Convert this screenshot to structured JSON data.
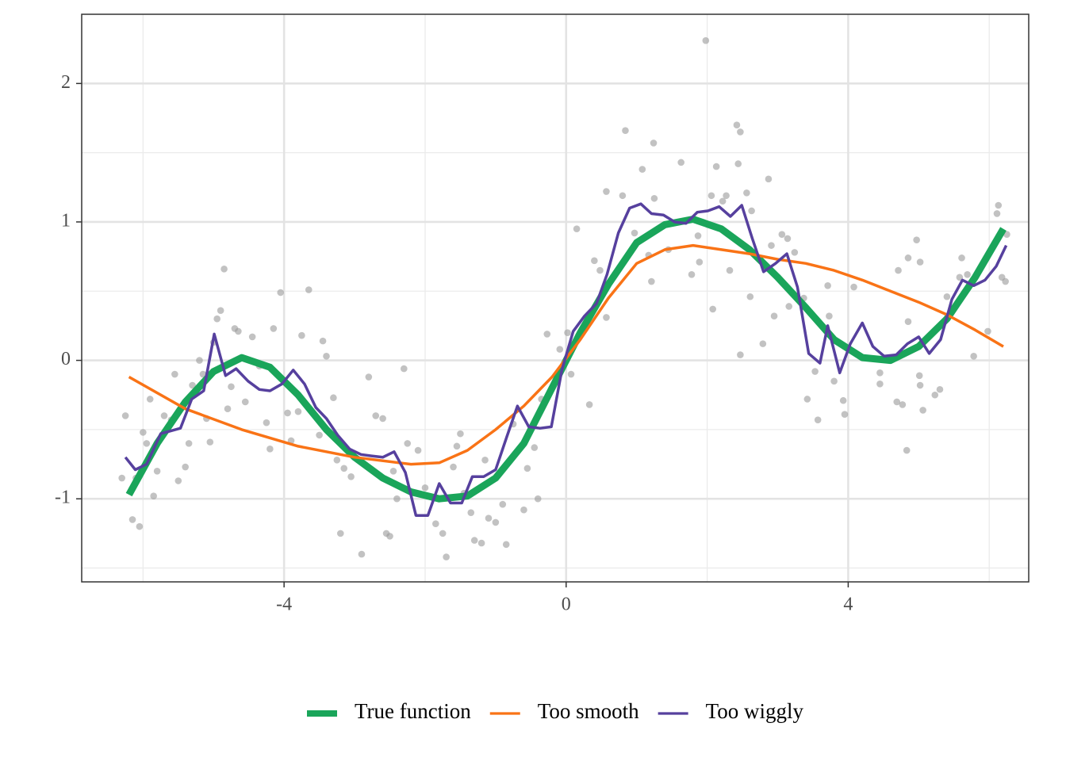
{
  "chart_data": {
    "type": "line",
    "xlim": [
      -6.87,
      6.56
    ],
    "ylim": [
      -1.6,
      2.5
    ],
    "xticks": [
      -4,
      0,
      4
    ],
    "yticks": [
      -1,
      0,
      1,
      2
    ],
    "minor_xgrid": [
      -6,
      -2,
      2,
      6
    ],
    "minor_ygrid": [
      -1.5,
      -0.5,
      0.5,
      1.5
    ],
    "grid": true,
    "legend_position": "bottom",
    "points": {
      "color": "#999999",
      "x": [
        -6.3,
        -6.25,
        -6.15,
        -6.1,
        -6.05,
        -6.0,
        -5.95,
        -5.9,
        -5.85,
        -5.8,
        -5.7,
        -5.6,
        -5.55,
        -5.5,
        -5.4,
        -5.35,
        -5.3,
        -5.2,
        -5.15,
        -5.1,
        -5.05,
        -5.0,
        -4.95,
        -4.9,
        -4.85,
        -4.8,
        -4.75,
        -4.7,
        -4.65,
        -4.55,
        -4.45,
        -4.35,
        -4.25,
        -4.2,
        -4.15,
        -4.05,
        -3.95,
        -3.9,
        -3.8,
        -3.75,
        -3.65,
        -3.5,
        -3.45,
        -3.4,
        -3.3,
        -3.25,
        -3.2,
        -3.15,
        -3.05,
        -2.9,
        -2.8,
        -2.7,
        -2.6,
        -2.55,
        -2.5,
        -2.45,
        -2.4,
        -2.3,
        -2.25,
        -2.1,
        -2.0,
        -1.85,
        -1.75,
        -1.7,
        -1.6,
        -1.55,
        -1.5,
        -1.45,
        -1.35,
        -1.3,
        -1.2,
        -1.15,
        -1.1,
        -1.0,
        -0.9,
        -0.85,
        -0.75,
        -0.6,
        -0.55,
        -0.45,
        -0.4,
        -0.35,
        -0.27,
        -0.09,
        0.02,
        0.07,
        0.15,
        0.33,
        0.4,
        0.48,
        0.57,
        0.57,
        0.8,
        0.84,
        0.97,
        1.08,
        1.17,
        1.21,
        1.24,
        1.25,
        1.45,
        1.63,
        1.78,
        1.87,
        1.89,
        1.98,
        2.06,
        2.08,
        2.13,
        2.22,
        2.27,
        2.32,
        2.42,
        2.44,
        2.47,
        2.47,
        2.56,
        2.61,
        2.63,
        2.79,
        2.87,
        2.91,
        2.95,
        3.06,
        3.14,
        3.16,
        3.24,
        3.37,
        3.42,
        3.53,
        3.57,
        3.71,
        3.73,
        3.8,
        3.93,
        3.95,
        4.08,
        4.45,
        4.45,
        4.69,
        4.71,
        4.77,
        4.83,
        4.85,
        4.85,
        4.97,
        5.02,
        5.01,
        5.02,
        5.06,
        5.23,
        5.3,
        5.4,
        5.58,
        5.61,
        5.69,
        5.78,
        5.98,
        6.11,
        6.13,
        6.18,
        6.23,
        6.25
      ],
      "y": [
        -0.85,
        -0.4,
        -1.15,
        -0.85,
        -1.2,
        -0.52,
        -0.6,
        -0.28,
        -0.98,
        -0.8,
        -0.4,
        -0.43,
        -0.1,
        -0.87,
        -0.77,
        -0.6,
        -0.18,
        0.0,
        -0.1,
        -0.42,
        -0.59,
        0.13,
        0.3,
        0.36,
        0.66,
        -0.35,
        -0.19,
        0.23,
        0.21,
        -0.3,
        0.17,
        -0.04,
        -0.45,
        -0.64,
        0.23,
        0.49,
        -0.38,
        -0.58,
        -0.37,
        0.18,
        0.51,
        -0.54,
        0.14,
        0.03,
        -0.27,
        -0.72,
        -1.25,
        -0.78,
        -0.84,
        -1.4,
        -0.12,
        -0.4,
        -0.42,
        -1.25,
        -1.27,
        -0.8,
        -1.0,
        -0.06,
        -0.6,
        -0.65,
        -0.92,
        -1.18,
        -1.25,
        -1.42,
        -0.77,
        -0.62,
        -0.53,
        -0.96,
        -1.1,
        -1.3,
        -1.32,
        -0.72,
        -1.14,
        -1.17,
        -1.04,
        -1.33,
        -0.46,
        -1.08,
        -0.78,
        -0.63,
        -1.0,
        -0.28,
        0.19,
        0.08,
        0.2,
        -0.1,
        0.95,
        -0.32,
        0.72,
        0.65,
        0.31,
        1.22,
        1.19,
        1.66,
        0.92,
        1.38,
        0.76,
        0.57,
        1.57,
        1.17,
        0.8,
        1.43,
        0.62,
        0.9,
        0.71,
        2.31,
        1.19,
        0.37,
        1.4,
        1.15,
        1.19,
        0.65,
        1.7,
        1.42,
        1.65,
        0.04,
        1.21,
        0.46,
        1.08,
        0.12,
        1.31,
        0.83,
        0.32,
        0.91,
        0.88,
        0.39,
        0.78,
        0.45,
        -0.28,
        -0.08,
        -0.43,
        0.54,
        0.32,
        -0.15,
        -0.29,
        -0.39,
        0.53,
        -0.17,
        -0.09,
        -0.3,
        0.65,
        -0.32,
        -0.65,
        0.28,
        0.74,
        0.87,
        0.71,
        -0.11,
        -0.18,
        -0.36,
        -0.25,
        -0.21,
        0.46,
        0.6,
        0.74,
        0.62,
        0.03,
        0.21,
        1.06,
        1.12,
        0.6,
        0.57,
        0.91
      ]
    },
    "series": [
      {
        "name": "True function",
        "color": "#1aa55a",
        "x": [
          -6.2,
          -5.8,
          -5.4,
          -5.0,
          -4.6,
          -4.2,
          -3.8,
          -3.4,
          -3.0,
          -2.6,
          -2.2,
          -1.8,
          -1.4,
          -1.0,
          -0.6,
          -0.2,
          0.2,
          0.6,
          1.0,
          1.4,
          1.8,
          2.2,
          2.6,
          3.0,
          3.4,
          3.8,
          4.2,
          4.6,
          5.0,
          5.4,
          5.8,
          6.2
        ],
        "values": [
          -0.97,
          -0.6,
          -0.3,
          -0.08,
          0.02,
          -0.05,
          -0.25,
          -0.5,
          -0.7,
          -0.85,
          -0.95,
          -1.0,
          -0.98,
          -0.85,
          -0.6,
          -0.2,
          0.2,
          0.55,
          0.85,
          0.98,
          1.02,
          0.95,
          0.8,
          0.6,
          0.38,
          0.15,
          0.02,
          0.0,
          0.1,
          0.3,
          0.6,
          0.95
        ]
      },
      {
        "name": "Too smooth",
        "color": "#f97316",
        "x": [
          -6.2,
          -5.4,
          -4.6,
          -3.8,
          -3.0,
          -2.2,
          -1.8,
          -1.4,
          -1.0,
          -0.6,
          -0.2,
          0.2,
          0.6,
          1.0,
          1.4,
          1.8,
          2.2,
          2.6,
          3.0,
          3.4,
          3.8,
          4.2,
          4.6,
          5.0,
          5.4,
          5.8,
          6.2
        ],
        "values": [
          -0.12,
          -0.35,
          -0.5,
          -0.62,
          -0.7,
          -0.75,
          -0.74,
          -0.65,
          -0.5,
          -0.33,
          -0.12,
          0.15,
          0.45,
          0.7,
          0.8,
          0.83,
          0.8,
          0.77,
          0.73,
          0.7,
          0.65,
          0.58,
          0.5,
          0.42,
          0.33,
          0.22,
          0.1
        ]
      },
      {
        "name": "Too wiggly",
        "color": "#56409e",
        "x": [
          -6.25,
          -6.11,
          -5.95,
          -5.75,
          -5.47,
          -5.31,
          -5.14,
          -4.99,
          -4.83,
          -4.68,
          -4.51,
          -4.35,
          -4.2,
          -4.03,
          -3.87,
          -3.71,
          -3.55,
          -3.4,
          -3.24,
          -3.07,
          -2.91,
          -2.76,
          -2.6,
          -2.44,
          -2.28,
          -2.13,
          -1.96,
          -1.8,
          -1.64,
          -1.48,
          -1.33,
          -1.17,
          -1.0,
          -0.84,
          -0.69,
          -0.53,
          -0.37,
          -0.21,
          -0.06,
          0.1,
          0.26,
          0.43,
          0.58,
          0.74,
          0.9,
          1.06,
          1.21,
          1.38,
          1.54,
          1.7,
          1.86,
          2.01,
          2.17,
          2.33,
          2.49,
          2.64,
          2.8,
          2.97,
          3.13,
          3.28,
          3.44,
          3.6,
          3.71,
          3.88,
          4.03,
          4.2,
          4.35,
          4.51,
          4.68,
          4.84,
          5.0,
          5.15,
          5.31,
          5.47,
          5.62,
          5.78,
          5.94,
          6.1,
          6.24
        ],
        "values": [
          -0.7,
          -0.79,
          -0.75,
          -0.53,
          -0.49,
          -0.28,
          -0.22,
          0.19,
          -0.11,
          -0.06,
          -0.15,
          -0.21,
          -0.22,
          -0.17,
          -0.07,
          -0.17,
          -0.34,
          -0.42,
          -0.54,
          -0.64,
          -0.68,
          -0.69,
          -0.7,
          -0.66,
          -0.81,
          -1.12,
          -1.12,
          -0.89,
          -1.03,
          -1.03,
          -0.84,
          -0.84,
          -0.79,
          -0.55,
          -0.33,
          -0.48,
          -0.49,
          -0.48,
          -0.07,
          0.21,
          0.32,
          0.41,
          0.62,
          0.92,
          1.1,
          1.13,
          1.06,
          1.05,
          1.0,
          0.99,
          1.07,
          1.08,
          1.11,
          1.04,
          1.12,
          0.88,
          0.64,
          0.7,
          0.77,
          0.53,
          0.05,
          -0.02,
          0.25,
          -0.09,
          0.12,
          0.27,
          0.1,
          0.03,
          0.04,
          0.12,
          0.17,
          0.05,
          0.15,
          0.44,
          0.58,
          0.54,
          0.58,
          0.68,
          0.83
        ]
      }
    ]
  }
}
